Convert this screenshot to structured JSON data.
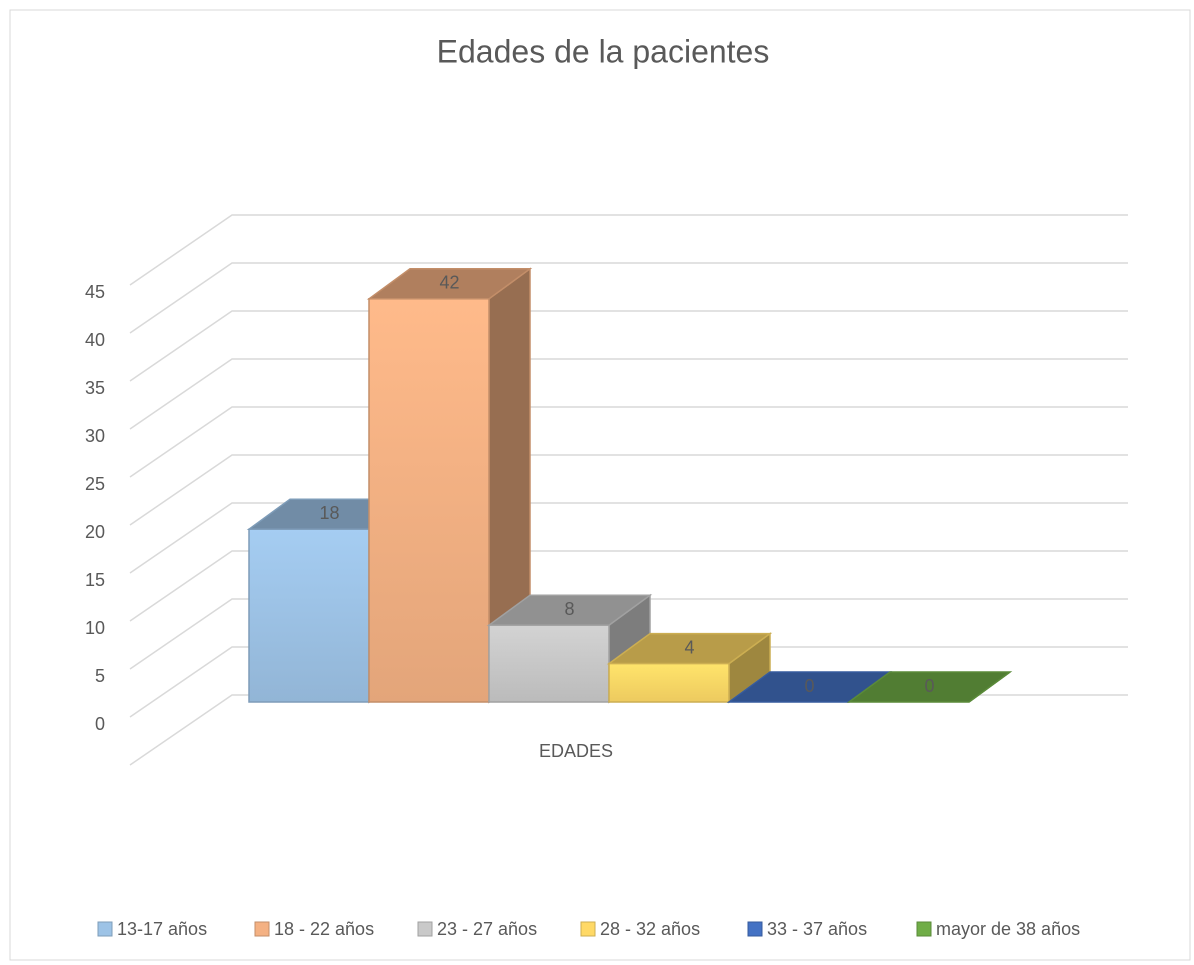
{
  "chart_data": {
    "type": "bar3d",
    "title": "Edades de la pacientes",
    "categories": [
      "EDADES"
    ],
    "series": [
      {
        "name": "13-17 años",
        "color": "#9dc3e6",
        "values": [
          18
        ]
      },
      {
        "name": "18 - 22 años",
        "color": "#f4b183",
        "values": [
          42
        ]
      },
      {
        "name": "23 - 27 años",
        "color": "#c9c9c9",
        "values": [
          8
        ]
      },
      {
        "name": "28 - 32 años",
        "color": "#ffd966",
        "values": [
          4
        ]
      },
      {
        "name": "33 - 37 años",
        "color": "#4472c4",
        "values": [
          0
        ]
      },
      {
        "name": "mayor de 38 años",
        "color": "#70ad47",
        "values": [
          0
        ]
      }
    ],
    "ylim": [
      0,
      50
    ],
    "yticks": [
      0,
      5,
      10,
      15,
      20,
      25,
      30,
      35,
      40,
      45
    ],
    "grid": true,
    "legend": "bottom"
  }
}
